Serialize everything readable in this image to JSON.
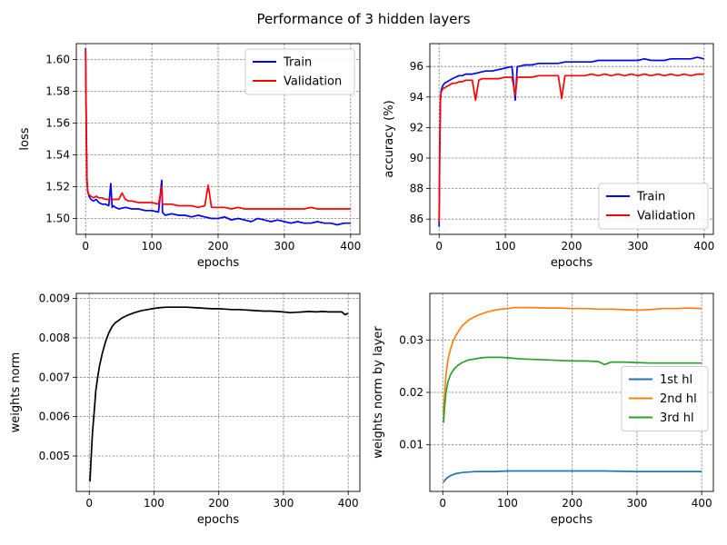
{
  "figure": {
    "suptitle": "Performance of 3 hidden layers"
  },
  "chart_data": [
    {
      "type": "line",
      "xlabel": "epochs",
      "ylabel": "loss",
      "xlim": [
        -14,
        414
      ],
      "ylim": [
        1.49,
        1.61
      ],
      "xticks": [
        0,
        100,
        200,
        300,
        400
      ],
      "yticks": [
        1.5,
        1.52,
        1.54,
        1.56,
        1.58,
        1.6
      ],
      "ytick_labels": [
        "1.50",
        "1.52",
        "1.54",
        "1.56",
        "1.58",
        "1.60"
      ],
      "grid": true,
      "legend": "top-right",
      "series": [
        {
          "name": "Train",
          "color": "#0000ff",
          "x": [
            0,
            1,
            2,
            3,
            5,
            8,
            12,
            16,
            20,
            25,
            30,
            35,
            38,
            40,
            42,
            45,
            50,
            60,
            70,
            80,
            90,
            100,
            110,
            115,
            116,
            118,
            120,
            130,
            140,
            150,
            160,
            170,
            180,
            190,
            200,
            210,
            220,
            230,
            240,
            250,
            260,
            270,
            280,
            290,
            300,
            310,
            320,
            330,
            340,
            350,
            360,
            370,
            380,
            390,
            395,
            400
          ],
          "y": [
            1.607,
            1.56,
            1.525,
            1.518,
            1.514,
            1.512,
            1.511,
            1.512,
            1.51,
            1.509,
            1.509,
            1.508,
            1.522,
            1.507,
            1.508,
            1.507,
            1.506,
            1.507,
            1.506,
            1.506,
            1.505,
            1.505,
            1.504,
            1.524,
            1.504,
            1.503,
            1.502,
            1.503,
            1.502,
            1.502,
            1.501,
            1.502,
            1.501,
            1.5,
            1.5,
            1.501,
            1.499,
            1.5,
            1.499,
            1.498,
            1.5,
            1.499,
            1.498,
            1.499,
            1.498,
            1.497,
            1.498,
            1.497,
            1.497,
            1.498,
            1.497,
            1.497,
            1.496,
            1.497,
            1.497,
            1.497
          ]
        },
        {
          "name": "Validation",
          "color": "#ff0000",
          "x": [
            0,
            1,
            2,
            3,
            5,
            8,
            12,
            16,
            20,
            25,
            30,
            35,
            40,
            45,
            50,
            55,
            60,
            65,
            70,
            80,
            90,
            100,
            110,
            115,
            116,
            118,
            120,
            130,
            140,
            150,
            160,
            170,
            180,
            185,
            190,
            200,
            210,
            220,
            230,
            240,
            250,
            260,
            270,
            280,
            290,
            300,
            310,
            320,
            330,
            340,
            350,
            360,
            370,
            380,
            390,
            400
          ],
          "y": [
            1.606,
            1.558,
            1.524,
            1.517,
            1.515,
            1.514,
            1.513,
            1.514,
            1.513,
            1.513,
            1.512,
            1.512,
            1.512,
            1.512,
            1.512,
            1.516,
            1.512,
            1.511,
            1.511,
            1.51,
            1.51,
            1.51,
            1.509,
            1.52,
            1.509,
            1.509,
            1.509,
            1.509,
            1.508,
            1.508,
            1.508,
            1.507,
            1.508,
            1.521,
            1.507,
            1.507,
            1.507,
            1.506,
            1.507,
            1.506,
            1.506,
            1.506,
            1.506,
            1.506,
            1.506,
            1.506,
            1.506,
            1.506,
            1.506,
            1.507,
            1.506,
            1.506,
            1.506,
            1.506,
            1.506,
            1.506
          ]
        }
      ]
    },
    {
      "type": "line",
      "xlabel": "epochs",
      "ylabel": "accuracy (%)",
      "xlim": [
        -14,
        414
      ],
      "ylim": [
        85.0,
        97.5
      ],
      "xticks": [
        0,
        100,
        200,
        300,
        400
      ],
      "yticks": [
        86,
        88,
        90,
        92,
        94,
        96
      ],
      "ytick_labels": [
        "86",
        "88",
        "90",
        "92",
        "94",
        "96"
      ],
      "grid": true,
      "legend": "bottom-right",
      "series": [
        {
          "name": "Train",
          "color": "#0000ff",
          "x": [
            0,
            1,
            2,
            3,
            5,
            8,
            12,
            16,
            20,
            25,
            30,
            35,
            40,
            45,
            50,
            60,
            70,
            80,
            90,
            100,
            110,
            115,
            118,
            120,
            130,
            140,
            150,
            160,
            170,
            180,
            190,
            200,
            210,
            220,
            230,
            240,
            250,
            260,
            270,
            280,
            290,
            300,
            310,
            320,
            330,
            340,
            350,
            360,
            370,
            380,
            390,
            400
          ],
          "y": [
            85.5,
            90.5,
            93.8,
            94.4,
            94.7,
            94.9,
            95.0,
            95.1,
            95.2,
            95.3,
            95.4,
            95.4,
            95.5,
            95.5,
            95.5,
            95.6,
            95.7,
            95.7,
            95.8,
            95.9,
            96.0,
            93.8,
            96.0,
            96.0,
            96.1,
            96.1,
            96.2,
            96.2,
            96.2,
            96.2,
            96.3,
            96.3,
            96.3,
            96.3,
            96.3,
            96.4,
            96.4,
            96.4,
            96.4,
            96.4,
            96.4,
            96.4,
            96.5,
            96.4,
            96.4,
            96.4,
            96.5,
            96.5,
            96.5,
            96.5,
            96.6,
            96.5
          ]
        },
        {
          "name": "Validation",
          "color": "#ff0000",
          "x": [
            0,
            1,
            2,
            3,
            5,
            8,
            12,
            16,
            20,
            25,
            30,
            35,
            40,
            45,
            50,
            55,
            60,
            65,
            70,
            80,
            90,
            100,
            110,
            115,
            118,
            120,
            130,
            140,
            150,
            160,
            170,
            180,
            185,
            190,
            200,
            210,
            220,
            230,
            240,
            250,
            260,
            270,
            280,
            290,
            300,
            310,
            320,
            330,
            340,
            350,
            360,
            370,
            380,
            390,
            400
          ],
          "y": [
            85.8,
            90.6,
            93.9,
            94.3,
            94.5,
            94.6,
            94.7,
            94.8,
            94.9,
            94.9,
            95.0,
            95.0,
            95.1,
            95.1,
            95.1,
            93.8,
            95.1,
            95.2,
            95.2,
            95.2,
            95.2,
            95.3,
            95.3,
            94.1,
            95.3,
            95.3,
            95.3,
            95.3,
            95.4,
            95.4,
            95.4,
            95.4,
            93.9,
            95.4,
            95.4,
            95.4,
            95.4,
            95.5,
            95.4,
            95.5,
            95.4,
            95.5,
            95.4,
            95.5,
            95.4,
            95.5,
            95.4,
            95.5,
            95.4,
            95.5,
            95.4,
            95.5,
            95.4,
            95.5,
            95.5
          ]
        }
      ]
    },
    {
      "type": "line",
      "xlabel": "epochs",
      "ylabel": "weights norm",
      "xlim": [
        -20,
        418
      ],
      "ylim": [
        0.0041,
        0.00913
      ],
      "xticks": [
        0,
        100,
        200,
        300,
        400
      ],
      "yticks": [
        0.005,
        0.006,
        0.007,
        0.008,
        0.009
      ],
      "ytick_labels": [
        "0.005",
        "0.006",
        "0.007",
        "0.008",
        "0.009"
      ],
      "grid": true,
      "legend": "none",
      "series": [
        {
          "name": "",
          "color": "#000000",
          "x": [
            1,
            3,
            5,
            8,
            10,
            13,
            16,
            20,
            25,
            30,
            35,
            40,
            50,
            60,
            70,
            80,
            90,
            100,
            110,
            120,
            130,
            140,
            150,
            160,
            170,
            180,
            190,
            200,
            210,
            220,
            230,
            240,
            250,
            260,
            270,
            280,
            290,
            300,
            310,
            320,
            330,
            340,
            350,
            360,
            370,
            380,
            390,
            395,
            400
          ],
          "y": [
            0.00435,
            0.005,
            0.0056,
            0.0062,
            0.00665,
            0.007,
            0.0073,
            0.0076,
            0.0079,
            0.00812,
            0.00828,
            0.00838,
            0.0085,
            0.00858,
            0.00864,
            0.00869,
            0.00872,
            0.00875,
            0.00877,
            0.00878,
            0.00878,
            0.00878,
            0.00878,
            0.00877,
            0.00876,
            0.00875,
            0.00874,
            0.00874,
            0.00873,
            0.00872,
            0.00872,
            0.00871,
            0.0087,
            0.00869,
            0.00868,
            0.00868,
            0.00867,
            0.00866,
            0.00864,
            0.00865,
            0.00866,
            0.00867,
            0.00866,
            0.00867,
            0.00866,
            0.00866,
            0.00866,
            0.00859,
            0.00862
          ]
        }
      ]
    },
    {
      "type": "line",
      "xlabel": "epochs",
      "ylabel": "weights norm by layer",
      "xlim": [
        -20,
        418
      ],
      "ylim": [
        0.0011,
        0.0389
      ],
      "xticks": [
        0,
        100,
        200,
        300,
        400
      ],
      "yticks": [
        0.01,
        0.02,
        0.03
      ],
      "ytick_labels": [
        "0.01",
        "0.02",
        "0.03"
      ],
      "grid": true,
      "legend": "center-right",
      "series": [
        {
          "name": "1st hl",
          "color": "#1f77b4",
          "x": [
            1,
            3,
            5,
            8,
            12,
            16,
            20,
            25,
            30,
            40,
            50,
            60,
            80,
            100,
            120,
            150,
            200,
            250,
            300,
            350,
            400
          ],
          "y": [
            0.0028,
            0.0032,
            0.0035,
            0.0038,
            0.0041,
            0.0043,
            0.0045,
            0.0046,
            0.0047,
            0.0048,
            0.0049,
            0.0049,
            0.0049,
            0.005,
            0.005,
            0.005,
            0.005,
            0.005,
            0.0049,
            0.0049,
            0.0049
          ]
        },
        {
          "name": "2nd hl",
          "color": "#ff7f0e",
          "x": [
            1,
            3,
            5,
            8,
            12,
            16,
            20,
            25,
            30,
            40,
            50,
            60,
            70,
            80,
            90,
            100,
            110,
            120,
            140,
            160,
            180,
            200,
            220,
            240,
            260,
            280,
            300,
            320,
            340,
            360,
            380,
            400
          ],
          "y": [
            0.016,
            0.02,
            0.0235,
            0.0262,
            0.0283,
            0.0298,
            0.0308,
            0.0318,
            0.0327,
            0.0338,
            0.0345,
            0.035,
            0.0354,
            0.0357,
            0.0359,
            0.036,
            0.0362,
            0.0362,
            0.0362,
            0.0361,
            0.0361,
            0.036,
            0.036,
            0.0359,
            0.0359,
            0.0358,
            0.0357,
            0.0358,
            0.036,
            0.036,
            0.0361,
            0.036
          ]
        },
        {
          "name": "3rd hl",
          "color": "#2ca02c",
          "x": [
            1,
            3,
            5,
            8,
            12,
            16,
            20,
            25,
            30,
            40,
            50,
            60,
            70,
            80,
            90,
            100,
            110,
            120,
            140,
            160,
            180,
            200,
            220,
            240,
            250,
            260,
            280,
            300,
            320,
            340,
            360,
            380,
            400
          ],
          "y": [
            0.0142,
            0.0175,
            0.02,
            0.022,
            0.0234,
            0.0242,
            0.0248,
            0.0253,
            0.0257,
            0.0262,
            0.0264,
            0.0266,
            0.0267,
            0.0267,
            0.0267,
            0.0266,
            0.0265,
            0.0264,
            0.0263,
            0.0262,
            0.0261,
            0.026,
            0.026,
            0.0259,
            0.0253,
            0.0258,
            0.0258,
            0.0257,
            0.0256,
            0.0256,
            0.0256,
            0.0256,
            0.0256
          ]
        }
      ]
    }
  ]
}
